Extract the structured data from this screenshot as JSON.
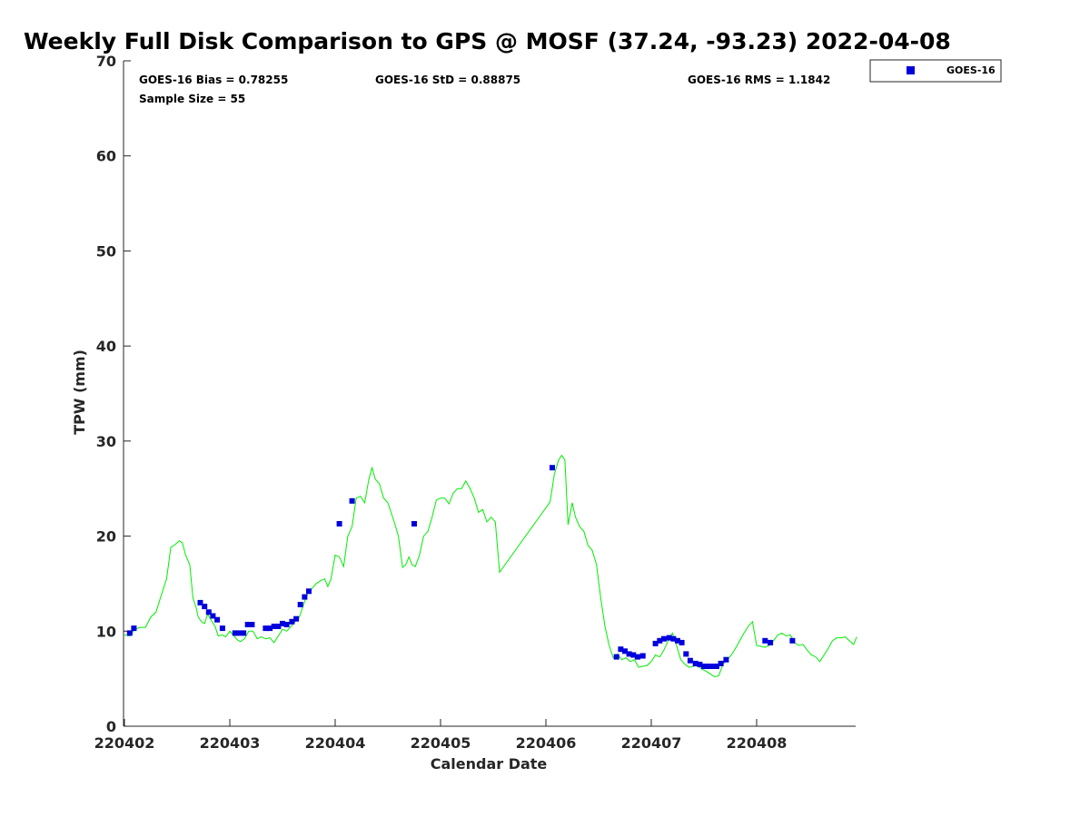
{
  "chart_data": {
    "type": "scatter",
    "title": "Weekly Full Disk Comparison to GPS @ MOSF (37.24, -93.23) 2022-04-08",
    "xlabel": "Calendar Date",
    "ylabel": "TPW (mm)",
    "x_tick_labels": [
      "220402",
      "220403",
      "220404",
      "220405",
      "220406",
      "220407",
      "220408"
    ],
    "y_tick_labels": [
      "0",
      "10",
      "20",
      "30",
      "40",
      "50",
      "60",
      "70"
    ],
    "xlim": [
      0,
      6.95
    ],
    "ylim": [
      0,
      70
    ],
    "grid": false,
    "legend_position": "top-right",
    "stats": {
      "bias": "GOES-16 Bias = 0.78255",
      "std": "GOES-16 StD = 0.88875",
      "rms": "GOES-16 RMS = 1.1842",
      "sample": "Sample Size = 55"
    },
    "series": [
      {
        "name": "GOES-16",
        "kind": "scatter",
        "color": "#0000dd",
        "points": [
          [
            0.05,
            9.8
          ],
          [
            0.09,
            10.3
          ],
          [
            0.72,
            13.0
          ],
          [
            0.76,
            12.6
          ],
          [
            0.8,
            12.0
          ],
          [
            0.84,
            11.6
          ],
          [
            0.88,
            11.2
          ],
          [
            0.93,
            10.3
          ],
          [
            1.05,
            9.8
          ],
          [
            1.09,
            9.8
          ],
          [
            1.13,
            9.8
          ],
          [
            1.17,
            10.7
          ],
          [
            1.21,
            10.7
          ],
          [
            1.34,
            10.3
          ],
          [
            1.38,
            10.3
          ],
          [
            1.42,
            10.5
          ],
          [
            1.46,
            10.5
          ],
          [
            1.5,
            10.8
          ],
          [
            1.54,
            10.7
          ],
          [
            1.59,
            11.0
          ],
          [
            1.63,
            11.3
          ],
          [
            1.67,
            12.8
          ],
          [
            1.71,
            13.6
          ],
          [
            1.75,
            14.2
          ],
          [
            2.04,
            21.3
          ],
          [
            2.16,
            23.7
          ],
          [
            2.75,
            21.3
          ],
          [
            4.06,
            27.2
          ],
          [
            4.67,
            7.3
          ],
          [
            4.71,
            8.1
          ],
          [
            4.75,
            7.9
          ],
          [
            4.79,
            7.6
          ],
          [
            4.83,
            7.5
          ],
          [
            4.87,
            7.3
          ],
          [
            4.92,
            7.4
          ],
          [
            5.04,
            8.7
          ],
          [
            5.08,
            9.0
          ],
          [
            5.12,
            9.2
          ],
          [
            5.17,
            9.3
          ],
          [
            5.21,
            9.2
          ],
          [
            5.25,
            9.0
          ],
          [
            5.29,
            8.8
          ],
          [
            5.33,
            7.6
          ],
          [
            5.37,
            6.9
          ],
          [
            5.42,
            6.6
          ],
          [
            5.46,
            6.5
          ],
          [
            5.5,
            6.3
          ],
          [
            5.54,
            6.3
          ],
          [
            5.58,
            6.3
          ],
          [
            5.62,
            6.3
          ],
          [
            5.66,
            6.6
          ],
          [
            5.71,
            7.0
          ],
          [
            6.08,
            9.0
          ],
          [
            6.13,
            8.8
          ],
          [
            6.34,
            9.0
          ]
        ]
      },
      {
        "name": "GPS",
        "kind": "line",
        "color": "#00ee00",
        "points": [
          [
            0.0,
            9.6
          ],
          [
            0.05,
            9.5
          ],
          [
            0.1,
            10.2
          ],
          [
            0.15,
            10.4
          ],
          [
            0.2,
            10.4
          ],
          [
            0.25,
            11.5
          ],
          [
            0.3,
            12.0
          ],
          [
            0.35,
            13.8
          ],
          [
            0.4,
            15.5
          ],
          [
            0.44,
            18.8
          ],
          [
            0.48,
            19.1
          ],
          [
            0.52,
            19.5
          ],
          [
            0.55,
            19.3
          ],
          [
            0.58,
            18.0
          ],
          [
            0.62,
            17.0
          ],
          [
            0.65,
            13.5
          ],
          [
            0.68,
            12.5
          ],
          [
            0.7,
            11.5
          ],
          [
            0.73,
            11.0
          ],
          [
            0.76,
            10.8
          ],
          [
            0.79,
            11.8
          ],
          [
            0.83,
            11.0
          ],
          [
            0.86,
            10.5
          ],
          [
            0.89,
            9.5
          ],
          [
            0.93,
            9.6
          ],
          [
            0.96,
            9.4
          ],
          [
            1.0,
            10.0
          ],
          [
            1.04,
            9.5
          ],
          [
            1.07,
            9.1
          ],
          [
            1.1,
            8.9
          ],
          [
            1.14,
            9.2
          ],
          [
            1.18,
            10.0
          ],
          [
            1.22,
            10.0
          ],
          [
            1.26,
            9.2
          ],
          [
            1.3,
            9.4
          ],
          [
            1.34,
            9.2
          ],
          [
            1.38,
            9.3
          ],
          [
            1.42,
            8.8
          ],
          [
            1.46,
            9.5
          ],
          [
            1.5,
            10.2
          ],
          [
            1.54,
            10.0
          ],
          [
            1.58,
            10.5
          ],
          [
            1.62,
            11.0
          ],
          [
            1.66,
            11.5
          ],
          [
            1.7,
            12.8
          ],
          [
            1.74,
            14.0
          ],
          [
            1.78,
            14.5
          ],
          [
            1.82,
            15.0
          ],
          [
            1.86,
            15.3
          ],
          [
            1.9,
            15.5
          ],
          [
            1.93,
            14.7
          ],
          [
            1.96,
            15.5
          ],
          [
            2.0,
            18.0
          ],
          [
            2.04,
            17.8
          ],
          [
            2.08,
            16.8
          ],
          [
            2.12,
            20.0
          ],
          [
            2.16,
            21.0
          ],
          [
            2.2,
            24.0
          ],
          [
            2.24,
            24.2
          ],
          [
            2.28,
            23.5
          ],
          [
            2.32,
            26.0
          ],
          [
            2.35,
            27.2
          ],
          [
            2.38,
            26.0
          ],
          [
            2.42,
            25.5
          ],
          [
            2.46,
            24.0
          ],
          [
            2.5,
            23.5
          ],
          [
            2.53,
            22.5
          ],
          [
            2.56,
            21.5
          ],
          [
            2.6,
            20.0
          ],
          [
            2.64,
            16.7
          ],
          [
            2.67,
            17.0
          ],
          [
            2.7,
            17.8
          ],
          [
            2.73,
            17.0
          ],
          [
            2.76,
            16.8
          ],
          [
            2.8,
            18.0
          ],
          [
            2.84,
            20.0
          ],
          [
            2.88,
            20.5
          ],
          [
            2.92,
            22.0
          ],
          [
            2.96,
            23.8
          ],
          [
            3.0,
            24.0
          ],
          [
            3.04,
            24.0
          ],
          [
            3.08,
            23.4
          ],
          [
            3.12,
            24.5
          ],
          [
            3.16,
            25.0
          ],
          [
            3.2,
            25.0
          ],
          [
            3.24,
            25.8
          ],
          [
            3.28,
            25.0
          ],
          [
            3.32,
            24.0
          ],
          [
            3.36,
            22.5
          ],
          [
            3.4,
            22.8
          ],
          [
            3.44,
            21.5
          ],
          [
            3.48,
            22.0
          ],
          [
            3.52,
            21.5
          ],
          [
            3.56,
            16.2
          ],
          [
            4.04,
            23.6
          ],
          [
            4.08,
            26.5
          ],
          [
            4.12,
            28.0
          ],
          [
            4.15,
            28.5
          ],
          [
            4.18,
            28.0
          ],
          [
            4.21,
            21.2
          ],
          [
            4.25,
            23.5
          ],
          [
            4.28,
            22.0
          ],
          [
            4.32,
            21.0
          ],
          [
            4.36,
            20.5
          ],
          [
            4.4,
            19.0
          ],
          [
            4.44,
            18.5
          ],
          [
            4.48,
            17.0
          ],
          [
            4.52,
            13.5
          ],
          [
            4.56,
            10.5
          ],
          [
            4.6,
            8.5
          ],
          [
            4.64,
            7.2
          ],
          [
            4.68,
            7.6
          ],
          [
            4.72,
            7.0
          ],
          [
            4.76,
            7.2
          ],
          [
            4.8,
            6.8
          ],
          [
            4.84,
            7.0
          ],
          [
            4.88,
            6.2
          ],
          [
            4.92,
            6.3
          ],
          [
            4.96,
            6.4
          ],
          [
            5.0,
            6.8
          ],
          [
            5.04,
            7.5
          ],
          [
            5.08,
            7.3
          ],
          [
            5.12,
            8.0
          ],
          [
            5.16,
            9.0
          ],
          [
            5.2,
            9.8
          ],
          [
            5.24,
            8.5
          ],
          [
            5.28,
            7.0
          ],
          [
            5.32,
            6.5
          ],
          [
            5.36,
            6.2
          ],
          [
            5.4,
            6.3
          ],
          [
            5.44,
            6.4
          ],
          [
            5.48,
            6.0
          ],
          [
            5.52,
            5.8
          ],
          [
            5.56,
            5.5
          ],
          [
            5.6,
            5.2
          ],
          [
            5.64,
            5.3
          ],
          [
            5.68,
            6.5
          ],
          [
            5.72,
            7.0
          ],
          [
            5.76,
            7.5
          ],
          [
            5.8,
            8.2
          ],
          [
            5.84,
            9.0
          ],
          [
            5.88,
            9.8
          ],
          [
            5.92,
            10.5
          ],
          [
            5.96,
            11.0
          ],
          [
            6.0,
            8.5
          ],
          [
            6.04,
            8.4
          ],
          [
            6.08,
            8.3
          ],
          [
            6.12,
            8.5
          ],
          [
            6.16,
            9.0
          ],
          [
            6.2,
            9.6
          ],
          [
            6.24,
            9.8
          ],
          [
            6.28,
            9.5
          ],
          [
            6.32,
            9.6
          ],
          [
            6.36,
            8.8
          ],
          [
            6.4,
            8.5
          ],
          [
            6.44,
            8.6
          ],
          [
            6.48,
            8.0
          ],
          [
            6.52,
            7.5
          ],
          [
            6.56,
            7.3
          ],
          [
            6.6,
            6.8
          ],
          [
            6.64,
            7.5
          ],
          [
            6.68,
            8.2
          ],
          [
            6.72,
            9.0
          ],
          [
            6.76,
            9.3
          ],
          [
            6.8,
            9.3
          ],
          [
            6.84,
            9.4
          ],
          [
            6.88,
            9.0
          ],
          [
            6.92,
            8.6
          ],
          [
            6.95,
            9.4
          ]
        ]
      }
    ]
  }
}
